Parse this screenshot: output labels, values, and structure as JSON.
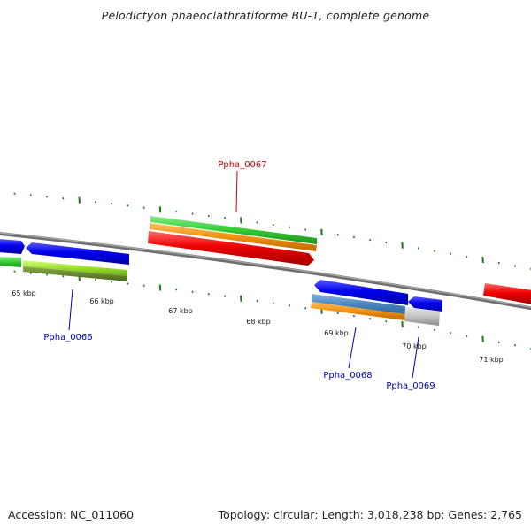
{
  "title": "Pelodictyon phaeoclathratiforme BU-1, complete genome",
  "footer": {
    "accession": "Accession: NC_011060",
    "summary": "Topology: circular; Length: 3,018,238 bp; Genes: 2,765"
  },
  "kbp_labels": [
    "65 kbp",
    "66 kbp",
    "67 kbp",
    "68 kbp",
    "69 kbp",
    "70 kbp",
    "71 kbp"
  ],
  "gene_labels": [
    {
      "id": "g67",
      "text": "Ppha_0067",
      "color": "#cc0000"
    },
    {
      "id": "g66",
      "text": "Ppha_0066",
      "color": "#0000aa"
    },
    {
      "id": "g68",
      "text": "Ppha_0068",
      "color": "#0000aa"
    },
    {
      "id": "g69",
      "text": "Ppha_0069",
      "color": "#0000aa"
    }
  ],
  "colors": {
    "backbone": "#808080",
    "tick": "#1a7a1a",
    "cds_forward": "#ee0000",
    "cds_reverse": "#0000ee",
    "gene": "#33cc33",
    "protein": "#f29010",
    "pseudo": "#aaaaaa",
    "label_red": "#cc0000",
    "label_blue": "#0000aa"
  }
}
